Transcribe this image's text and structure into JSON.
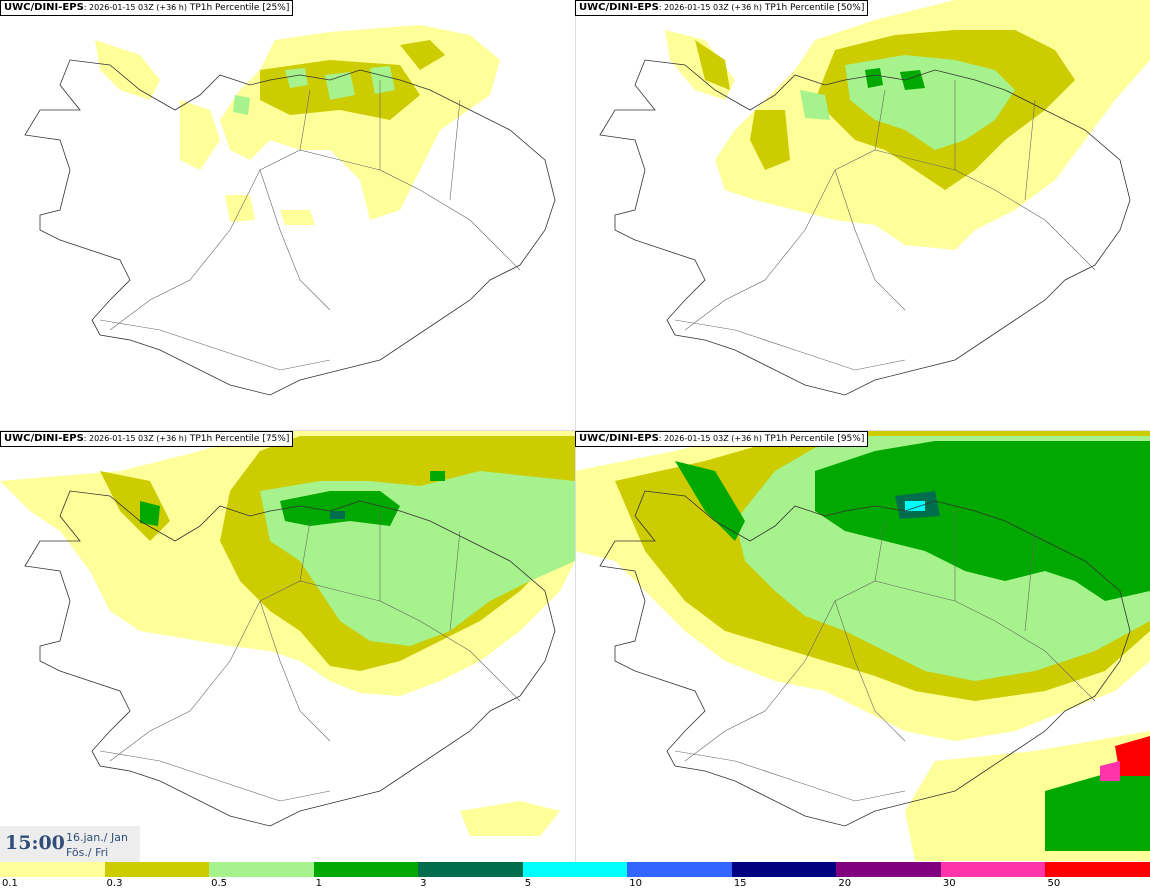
{
  "panels": [
    {
      "model": "UWC/DINI-EPS",
      "run": ": 2026-01-15 03Z (+36 h)",
      "field": " TP1h Percentile [25%]"
    },
    {
      "model": "UWC/DINI-EPS",
      "run": ": 2026-01-15 03Z (+36 h)",
      "field": " TP1h Percentile [50%]"
    },
    {
      "model": "UWC/DINI-EPS",
      "run": ": 2026-01-15 03Z (+36 h)",
      "field": " TP1h Percentile [75%]"
    },
    {
      "model": "UWC/DINI-EPS",
      "run": ": 2026-01-15 03Z (+36 h)",
      "field": " TP1h Percentile [95%]"
    }
  ],
  "valid_time": {
    "time": "15:00",
    "date_line1": "16.jan./ Jan",
    "date_line2": "Fös./ Fri"
  },
  "legend": {
    "colors": [
      "#ffff99",
      "#cccc00",
      "#a6f28c",
      "#00a800",
      "#006e4c",
      "#00ffff",
      "#3366ff",
      "#000080",
      "#80007f",
      "#ff33aa",
      "#ff0000"
    ],
    "ticks": [
      "0.1",
      "0.3",
      "0.5",
      "1",
      "3",
      "5",
      "10",
      "15",
      "20",
      "30",
      "50"
    ]
  },
  "palette": {
    "yellow": "#ffff99",
    "olive": "#cccc00",
    "lightgreen": "#a6f28c",
    "green": "#00a800",
    "darkgreen": "#006e4c",
    "cyan": "#00ffff"
  }
}
